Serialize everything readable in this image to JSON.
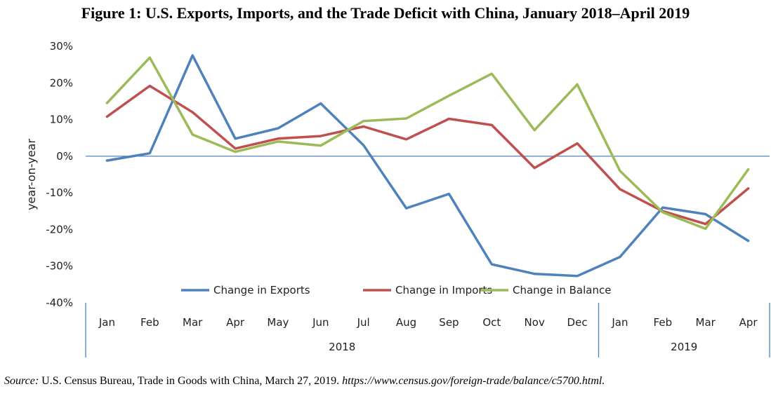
{
  "title": "Figure 1: U.S. Exports, Imports, and the Trade Deficit with China, January 2018–April 2019",
  "source": {
    "lead": "Source:",
    "text": "U.S. Census Bureau, Trade in Goods with China, March 27, 2019.",
    "url": "https://www.census.gov/foreign-trade/balance/c5700.html."
  },
  "colors": {
    "exports": "#4F81BD",
    "imports": "#C0504D",
    "balance": "#9BBB59",
    "axis": "#4F81BD"
  },
  "chart_data": {
    "type": "line",
    "ylabel": "year-on-year",
    "ylim": [
      -40,
      30
    ],
    "yticks": [
      30,
      20,
      10,
      0,
      -10,
      -20,
      -30,
      -40
    ],
    "ytick_labels": [
      "30%",
      "20%",
      "10%",
      "0%",
      "-10%",
      "-20%",
      "-30%",
      "-40%"
    ],
    "categories": [
      "Jan",
      "Feb",
      "Mar",
      "Apr",
      "May",
      "Jun",
      "Jul",
      "Aug",
      "Sep",
      "Oct",
      "Nov",
      "Dec",
      "Jan",
      "Feb",
      "Mar",
      "Apr"
    ],
    "groups": [
      {
        "label": "2018",
        "count": 12
      },
      {
        "label": "2019",
        "count": 4
      }
    ],
    "legend_position": "bottom",
    "series": [
      {
        "name": "Change in Exports",
        "color_key": "exports",
        "values": [
          -1.2,
          0.8,
          27.5,
          4.8,
          7.6,
          14.4,
          3.0,
          -14.2,
          -10.3,
          -29.5,
          -32.1,
          -32.7,
          -27.5,
          -14.0,
          -15.8,
          -23.1
        ]
      },
      {
        "name": "Change in Imports",
        "color_key": "imports",
        "values": [
          10.8,
          19.2,
          12.0,
          2.1,
          4.8,
          5.5,
          8.1,
          4.6,
          10.2,
          8.5,
          -3.2,
          3.5,
          -9.0,
          -15.0,
          -18.5,
          -8.8
        ]
      },
      {
        "name": "Change in Balance",
        "color_key": "balance",
        "values": [
          14.5,
          26.9,
          5.9,
          1.2,
          4.0,
          2.9,
          9.6,
          10.3,
          16.5,
          22.5,
          7.1,
          19.6,
          -4.0,
          -15.3,
          -19.8,
          -3.6
        ]
      }
    ]
  }
}
